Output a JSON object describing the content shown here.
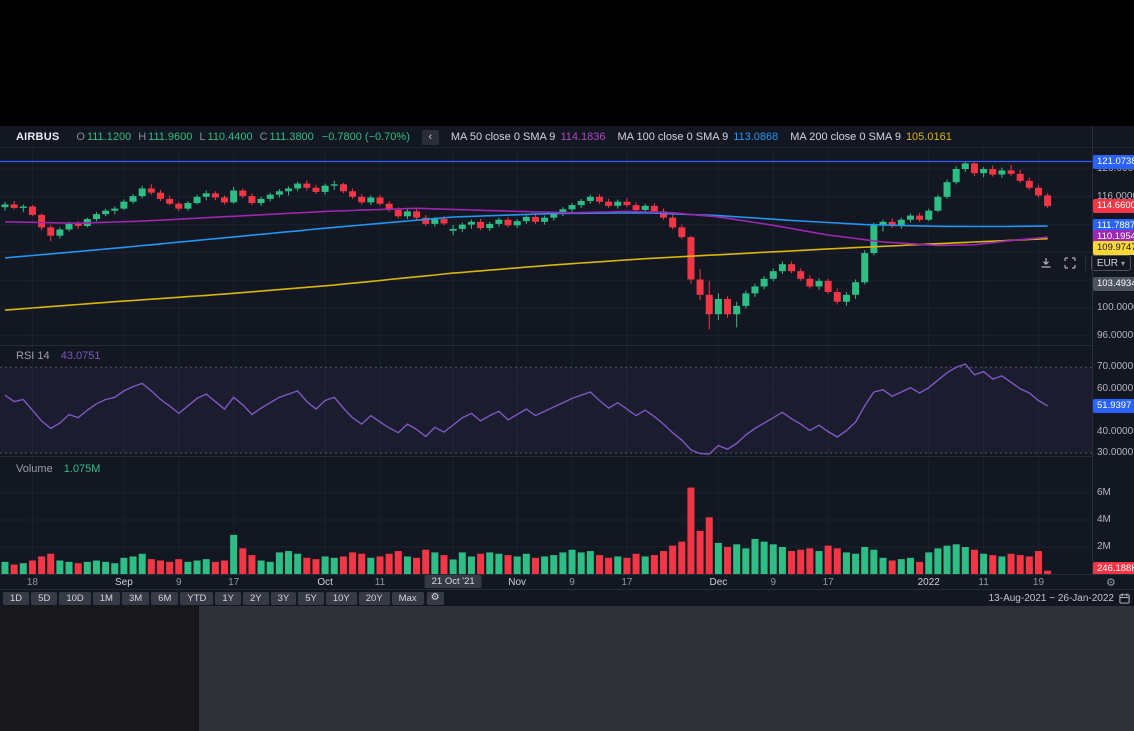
{
  "header": {
    "symbol": "AIRBUS",
    "ohlc_labels": {
      "o": "O",
      "h": "H",
      "l": "L",
      "c": "C"
    },
    "ohlc": {
      "o": "111.1200",
      "h": "111.9600",
      "l": "110.4400",
      "c": "111.3800",
      "change": "−0.7800 (−0.70%)"
    },
    "collapse_icon": "‹",
    "mas": [
      {
        "label": "MA 50 close 0 SMA 9",
        "value": "114.1836",
        "color": "#ab47bc"
      },
      {
        "label": "MA 100 close 0 SMA 9",
        "value": "113.0868",
        "color": "#2196f3"
      },
      {
        "label": "MA 200 close 0 SMA 9",
        "value": "105.0161",
        "color": "#d9b310"
      }
    ],
    "currency_button": {
      "label": "EUR",
      "caret": "▾"
    }
  },
  "panes": {
    "rsi_title": "RSI 14",
    "rsi_value": "43.0751",
    "volume_title": "Volume",
    "volume_value": "1.075M"
  },
  "axes": {
    "price_plain": [
      {
        "text": "120.0000",
        "price": 120
      },
      {
        "text": "116.0000",
        "price": 116
      },
      {
        "text": "108.0000",
        "price": 108
      },
      {
        "text": "100.0000",
        "price": 100
      },
      {
        "text": "96.0000",
        "price": 96
      }
    ],
    "price_badges": [
      {
        "text": "121.0738",
        "price": 121.0738,
        "bg": "#2962ff",
        "fg": "#ffffff"
      },
      {
        "text": "114.6600",
        "price": 114.66,
        "bg": "#f23645",
        "fg": "#ffffff"
      },
      {
        "text": "111.7887",
        "price": 111.7887,
        "bg": "#2962ff",
        "fg": "#ffffff"
      },
      {
        "text": "110.1954",
        "price": 110.1954,
        "bg": "#9c27b0",
        "fg": "#ffffff"
      },
      {
        "text": "109.9747",
        "price": 109.9747,
        "bg": "#fdd835",
        "fg": "#131722"
      },
      {
        "text": "103.4934",
        "price": 103.4934,
        "bg": "#4e5360",
        "fg": "#ffffff"
      }
    ],
    "rsi_plain": [
      {
        "text": "70.0000",
        "value": 70
      },
      {
        "text": "60.0000",
        "value": 60
      },
      {
        "text": "40.0000",
        "value": 40
      },
      {
        "text": "30.0000",
        "value": 30
      }
    ],
    "rsi_badge": {
      "text": "51.9397",
      "value": 51.9397,
      "bg": "#2962ff",
      "fg": "#ffffff"
    },
    "volume_plain": [
      {
        "text": "6M",
        "value": 6
      },
      {
        "text": "4M",
        "value": 4
      },
      {
        "text": "2M",
        "value": 2
      }
    ],
    "volume_badge": {
      "text": "246.188K",
      "value": 0.246,
      "bg": "#f23645",
      "fg": "#ffffff"
    }
  },
  "time_axis": {
    "ticks": [
      {
        "bar": 3,
        "label": "18",
        "style": "day"
      },
      {
        "bar": 13,
        "label": "Sep",
        "style": "month"
      },
      {
        "bar": 19,
        "label": "9",
        "style": "day"
      },
      {
        "bar": 25,
        "label": "17",
        "style": "day"
      },
      {
        "bar": 35,
        "label": "Oct",
        "style": "month"
      },
      {
        "bar": 41,
        "label": "11",
        "style": "day"
      },
      {
        "bar": 49,
        "label": "21 Oct '21",
        "style": "box"
      },
      {
        "bar": 56,
        "label": "Nov",
        "style": "month"
      },
      {
        "bar": 62,
        "label": "9",
        "style": "day"
      },
      {
        "bar": 68,
        "label": "17",
        "style": "day"
      },
      {
        "bar": 78,
        "label": "Dec",
        "style": "month"
      },
      {
        "bar": 84,
        "label": "9",
        "style": "day"
      },
      {
        "bar": 90,
        "label": "17",
        "style": "day"
      },
      {
        "bar": 101,
        "label": "2022",
        "style": "month"
      },
      {
        "bar": 107,
        "label": "11",
        "style": "day"
      },
      {
        "bar": 113,
        "label": "19",
        "style": "day"
      }
    ]
  },
  "toolbar": {
    "ranges": [
      "1D",
      "5D",
      "10D",
      "1M",
      "3M",
      "6M",
      "YTD",
      "1Y",
      "2Y",
      "3Y",
      "5Y",
      "10Y",
      "20Y",
      "Max"
    ],
    "settings_icon": "⚙",
    "date_range": "13-Aug-2021  ~  26-Jan-2022"
  },
  "chart_data": {
    "type": "candlestick+rsi+volume",
    "symbol": "AIRBUS",
    "currency": "EUR",
    "price_line": 121.0738,
    "main_grid_prices": [
      96,
      100,
      104,
      108,
      112,
      116,
      120
    ],
    "rsi_bands": [
      70,
      30
    ],
    "rsi_grid": [
      60,
      40
    ],
    "volume_grid": [
      2,
      4,
      6
    ],
    "colors": {
      "up": "#2ebd85",
      "down": "#f23645",
      "ma50": "#9c27b0",
      "ma100": "#2196f3",
      "ma200": "#d8b709",
      "rsi": "#7e57c2",
      "price_line": "#2962ff",
      "grid": "#1b2030",
      "divider": "#262b38",
      "rsi_band_fill": "rgba(126,87,194,0.09)"
    },
    "candles": [
      [
        114.5,
        115.3,
        114.0,
        114.9,
        0.9
      ],
      [
        114.9,
        115.4,
        114.2,
        114.4,
        0.7
      ],
      [
        114.4,
        114.9,
        113.8,
        114.6,
        0.8
      ],
      [
        114.6,
        114.8,
        113.2,
        113.4,
        1.0
      ],
      [
        113.4,
        113.6,
        111.2,
        111.6,
        1.3
      ],
      [
        111.6,
        112.0,
        109.6,
        110.4,
        1.5
      ],
      [
        110.4,
        111.6,
        110.0,
        111.3,
        1.0
      ],
      [
        111.3,
        112.4,
        111.0,
        112.1,
        0.9
      ],
      [
        112.1,
        112.5,
        111.4,
        111.8,
        0.8
      ],
      [
        111.8,
        113.0,
        111.6,
        112.8,
        0.9
      ],
      [
        112.8,
        113.8,
        112.5,
        113.5,
        1.0
      ],
      [
        113.5,
        114.3,
        113.2,
        114.0,
        0.9
      ],
      [
        114.0,
        114.6,
        113.5,
        114.3,
        0.8
      ],
      [
        114.3,
        115.6,
        114.1,
        115.3,
        1.2
      ],
      [
        115.3,
        116.4,
        115.0,
        116.1,
        1.3
      ],
      [
        116.1,
        117.6,
        115.8,
        117.2,
        1.5
      ],
      [
        117.2,
        117.8,
        116.3,
        116.6,
        1.1
      ],
      [
        116.6,
        117.0,
        115.4,
        115.7,
        1.0
      ],
      [
        115.7,
        116.2,
        114.8,
        115.0,
        0.9
      ],
      [
        115.0,
        115.3,
        113.9,
        114.3,
        1.1
      ],
      [
        114.3,
        115.4,
        114.0,
        115.1,
        0.9
      ],
      [
        115.1,
        116.3,
        114.9,
        116.0,
        1.0
      ],
      [
        116.0,
        116.9,
        115.5,
        116.5,
        1.1
      ],
      [
        116.5,
        116.8,
        115.5,
        115.9,
        0.9
      ],
      [
        115.9,
        116.2,
        114.9,
        115.2,
        1.0
      ],
      [
        115.2,
        117.4,
        115.0,
        116.9,
        2.9
      ],
      [
        116.9,
        117.2,
        115.8,
        116.1,
        1.9
      ],
      [
        116.1,
        116.5,
        114.8,
        115.1,
        1.4
      ],
      [
        115.1,
        116.0,
        114.7,
        115.7,
        1.0
      ],
      [
        115.7,
        116.6,
        115.3,
        116.3,
        0.9
      ],
      [
        116.3,
        117.1,
        115.9,
        116.8,
        1.6
      ],
      [
        116.8,
        117.5,
        116.2,
        117.2,
        1.7
      ],
      [
        117.2,
        118.2,
        116.8,
        117.9,
        1.5
      ],
      [
        117.9,
        118.4,
        116.9,
        117.3,
        1.2
      ],
      [
        117.3,
        117.7,
        116.4,
        116.7,
        1.1
      ],
      [
        116.7,
        117.9,
        116.3,
        117.6,
        1.3
      ],
      [
        117.6,
        118.3,
        117.0,
        117.8,
        1.2
      ],
      [
        117.8,
        118.0,
        116.5,
        116.8,
        1.3
      ],
      [
        116.8,
        117.2,
        115.7,
        116.0,
        1.6
      ],
      [
        116.0,
        116.4,
        114.9,
        115.2,
        1.5
      ],
      [
        115.2,
        116.2,
        114.8,
        115.9,
        1.2
      ],
      [
        115.9,
        116.3,
        114.7,
        115.0,
        1.3
      ],
      [
        115.0,
        115.4,
        113.8,
        114.1,
        1.5
      ],
      [
        114.1,
        114.5,
        112.9,
        113.2,
        1.7
      ],
      [
        113.2,
        114.2,
        112.8,
        113.9,
        1.3
      ],
      [
        113.9,
        114.3,
        112.7,
        113.0,
        1.2
      ],
      [
        113.0,
        113.4,
        111.8,
        112.1,
        1.8
      ],
      [
        112.1,
        113.1,
        111.7,
        112.8,
        1.6
      ],
      [
        112.8,
        113.2,
        111.9,
        112.16,
        1.4
      ],
      [
        111.12,
        111.96,
        110.44,
        111.38,
        1.075
      ],
      [
        111.38,
        112.3,
        110.9,
        112.0,
        1.6
      ],
      [
        112.0,
        112.7,
        111.4,
        112.4,
        1.3
      ],
      [
        112.4,
        112.8,
        111.2,
        111.5,
        1.5
      ],
      [
        111.5,
        112.4,
        111.1,
        112.1,
        1.6
      ],
      [
        112.1,
        113.0,
        111.7,
        112.7,
        1.5
      ],
      [
        112.7,
        113.1,
        111.6,
        111.9,
        1.4
      ],
      [
        111.9,
        112.8,
        111.5,
        112.5,
        1.3
      ],
      [
        112.5,
        113.4,
        112.1,
        113.1,
        1.5
      ],
      [
        113.1,
        113.5,
        112.1,
        112.4,
        1.2
      ],
      [
        112.4,
        113.3,
        112.0,
        113.0,
        1.3
      ],
      [
        113.0,
        113.9,
        112.6,
        113.6,
        1.4
      ],
      [
        113.6,
        114.5,
        113.2,
        114.2,
        1.6
      ],
      [
        114.2,
        115.1,
        113.8,
        114.8,
        1.8
      ],
      [
        114.8,
        115.7,
        114.4,
        115.4,
        1.6
      ],
      [
        115.4,
        116.3,
        115.0,
        116.0,
        1.7
      ],
      [
        116.0,
        116.4,
        115.0,
        115.3,
        1.4
      ],
      [
        115.3,
        115.7,
        114.4,
        114.7,
        1.2
      ],
      [
        114.7,
        115.6,
        114.3,
        115.3,
        1.3
      ],
      [
        115.3,
        115.8,
        114.5,
        114.8,
        1.2
      ],
      [
        114.8,
        115.2,
        113.8,
        114.1,
        1.5
      ],
      [
        114.1,
        115.0,
        113.7,
        114.7,
        1.3
      ],
      [
        114.7,
        115.1,
        113.6,
        113.9,
        1.4
      ],
      [
        113.9,
        114.3,
        112.7,
        113.0,
        1.7
      ],
      [
        113.0,
        113.4,
        111.3,
        111.6,
        2.1
      ],
      [
        111.6,
        112.0,
        109.9,
        110.2,
        2.4
      ],
      [
        110.2,
        110.4,
        103.5,
        104.1,
        6.4
      ],
      [
        104.1,
        105.6,
        101.1,
        101.9,
        3.2
      ],
      [
        101.9,
        103.9,
        96.9,
        99.1,
        4.2
      ],
      [
        99.1,
        102.1,
        98.3,
        101.3,
        2.3
      ],
      [
        101.3,
        101.7,
        98.6,
        99.1,
        2.0
      ],
      [
        99.1,
        100.9,
        97.2,
        100.3,
        2.2
      ],
      [
        100.3,
        102.5,
        99.9,
        102.1,
        1.9
      ],
      [
        102.1,
        103.5,
        101.6,
        103.1,
        2.6
      ],
      [
        103.1,
        104.6,
        102.7,
        104.2,
        2.4
      ],
      [
        104.2,
        105.7,
        103.8,
        105.3,
        2.2
      ],
      [
        105.3,
        106.7,
        104.9,
        106.3,
        2.0
      ],
      [
        106.3,
        106.7,
        105.0,
        105.3,
        1.7
      ],
      [
        105.3,
        105.7,
        103.9,
        104.2,
        1.8
      ],
      [
        104.2,
        104.7,
        102.8,
        103.1,
        1.9
      ],
      [
        103.1,
        104.3,
        102.6,
        103.9,
        1.7
      ],
      [
        103.9,
        104.2,
        102.0,
        102.3,
        2.1
      ],
      [
        102.3,
        102.8,
        100.5,
        100.9,
        1.9
      ],
      [
        100.9,
        102.3,
        100.3,
        101.9,
        1.6
      ],
      [
        101.9,
        104.1,
        101.3,
        103.7,
        1.5
      ],
      [
        103.7,
        108.3,
        103.4,
        107.9,
        2.0
      ],
      [
        107.9,
        112.3,
        107.6,
        111.9,
        1.8
      ],
      [
        111.9,
        112.7,
        111.0,
        112.4,
        1.2
      ],
      [
        112.4,
        112.9,
        111.5,
        111.8,
        1.0
      ],
      [
        111.8,
        113.0,
        111.4,
        112.7,
        1.1
      ],
      [
        112.7,
        113.6,
        112.3,
        113.3,
        1.2
      ],
      [
        113.3,
        113.7,
        112.4,
        112.7,
        0.9
      ],
      [
        112.7,
        114.3,
        112.5,
        114.0,
        1.6
      ],
      [
        114.0,
        116.3,
        113.8,
        116.0,
        1.9
      ],
      [
        116.0,
        118.5,
        115.7,
        118.1,
        2.1
      ],
      [
        118.1,
        120.4,
        117.8,
        120.0,
        2.2
      ],
      [
        120.0,
        121.1,
        119.6,
        120.8,
        2.0
      ],
      [
        120.8,
        121.0,
        119.0,
        119.4,
        1.8
      ],
      [
        119.4,
        120.3,
        118.8,
        120.0,
        1.5
      ],
      [
        120.0,
        120.5,
        118.9,
        119.2,
        1.4
      ],
      [
        119.2,
        120.2,
        118.7,
        119.8,
        1.3
      ],
      [
        119.8,
        120.6,
        119.0,
        119.3,
        1.5
      ],
      [
        119.3,
        119.9,
        118.0,
        118.3,
        1.4
      ],
      [
        118.3,
        118.8,
        117.0,
        117.3,
        1.3
      ],
      [
        117.3,
        117.7,
        115.9,
        116.2,
        1.7
      ],
      [
        116.2,
        116.5,
        114.4,
        114.66,
        0.246
      ]
    ],
    "rsi": [
      57,
      54,
      55,
      50,
      45,
      41.5,
      44,
      48,
      46.5,
      50,
      53,
      55,
      56,
      59,
      61,
      62.5,
      59,
      55,
      52,
      48.5,
      52,
      55.5,
      57.5,
      54,
      50.5,
      56,
      52.5,
      48,
      51,
      53.5,
      56,
      57.5,
      59,
      54,
      50.5,
      54.5,
      56,
      51,
      46.5,
      43.5,
      47.5,
      44.5,
      41.8,
      39.5,
      43.5,
      41,
      37.8,
      42,
      39.8,
      43.08,
      46.5,
      48.5,
      45,
      47.5,
      49.5,
      45.5,
      48,
      50.5,
      47.5,
      49.5,
      51.5,
      53.5,
      55.5,
      57,
      58.5,
      54.5,
      51,
      53.5,
      50.5,
      47.5,
      50,
      47,
      43.5,
      39.5,
      36,
      31.5,
      29.8,
      28.5,
      33.5,
      31.8,
      34.5,
      38.5,
      41.5,
      44,
      46.5,
      49,
      46,
      43.5,
      40.5,
      43,
      40,
      37.5,
      40.5,
      44.5,
      52,
      58.5,
      59.5,
      56.5,
      58.5,
      60.5,
      58,
      60.5,
      64,
      67.5,
      70,
      71.5,
      66.5,
      68,
      64.5,
      66,
      63,
      60,
      58,
      54.5,
      51.94
    ],
    "ma50_keypoints": [
      [
        0,
        112.4
      ],
      [
        8,
        112.2
      ],
      [
        15,
        112.5
      ],
      [
        25,
        113.2
      ],
      [
        35,
        113.9
      ],
      [
        45,
        114.35
      ],
      [
        49,
        114.18
      ],
      [
        56,
        113.9
      ],
      [
        62,
        113.7
      ],
      [
        68,
        113.9
      ],
      [
        73,
        113.7
      ],
      [
        78,
        113.1
      ],
      [
        84,
        111.9
      ],
      [
        90,
        110.5
      ],
      [
        96,
        109.5
      ],
      [
        102,
        109.0
      ],
      [
        106,
        109.1
      ],
      [
        110,
        109.7
      ],
      [
        114,
        110.2
      ]
    ],
    "ma100_keypoints": [
      [
        0,
        107.2
      ],
      [
        12,
        108.6
      ],
      [
        24,
        110.1
      ],
      [
        36,
        111.6
      ],
      [
        49,
        113.09
      ],
      [
        60,
        113.6
      ],
      [
        70,
        113.7
      ],
      [
        78,
        113.3
      ],
      [
        86,
        112.6
      ],
      [
        94,
        112.0
      ],
      [
        102,
        111.75
      ],
      [
        108,
        111.72
      ],
      [
        114,
        111.79
      ]
    ],
    "ma200_keypoints": [
      [
        0,
        99.7
      ],
      [
        12,
        100.9
      ],
      [
        24,
        102.0
      ],
      [
        36,
        103.3
      ],
      [
        49,
        105.02
      ],
      [
        60,
        106.2
      ],
      [
        70,
        107.1
      ],
      [
        80,
        107.8
      ],
      [
        90,
        108.5
      ],
      [
        98,
        109.0
      ],
      [
        106,
        109.5
      ],
      [
        114,
        109.97
      ]
    ]
  }
}
